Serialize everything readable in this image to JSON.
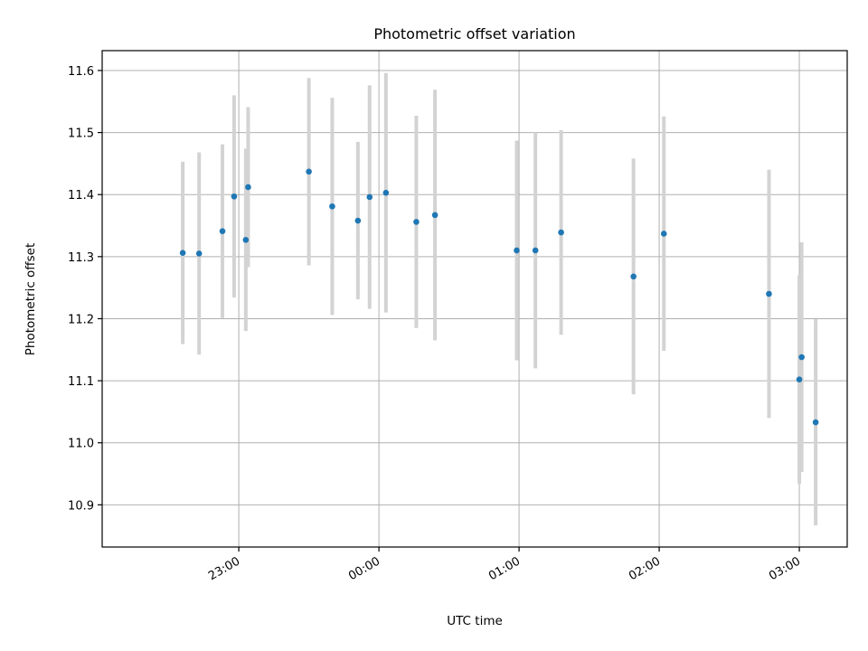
{
  "chart_data": {
    "type": "scatter",
    "title": "Photometric offset variation",
    "xlabel": "UTC time",
    "ylabel": "Photometric offset",
    "x_ticks": [
      "23:00",
      "00:00",
      "01:00",
      "02:00",
      "03:00"
    ],
    "x_tick_minutes": [
      1380,
      1440,
      1500,
      1560,
      1620
    ],
    "x_range_minutes": [
      1321.5,
      1640.5
    ],
    "ylim": [
      10.832,
      11.632
    ],
    "y_ticks": [
      10.9,
      11.0,
      11.1,
      11.2,
      11.3,
      11.4,
      11.5,
      11.6
    ],
    "grid": true,
    "point_color": "#1f77b4",
    "errorbar_color": "#d3d3d3",
    "points": [
      {
        "time": "22:36",
        "y": 11.306,
        "err": 0.147
      },
      {
        "time": "22:43",
        "y": 11.305,
        "err": 0.163
      },
      {
        "time": "22:53",
        "y": 11.341,
        "err": 0.14
      },
      {
        "time": "23:03",
        "y": 11.327,
        "err": 0.147
      },
      {
        "time": "22:58",
        "y": 11.397,
        "err": 0.163
      },
      {
        "time": "23:04",
        "y": 11.412,
        "err": 0.129
      },
      {
        "time": "23:30",
        "y": 11.437,
        "err": 0.151
      },
      {
        "time": "23:40",
        "y": 11.381,
        "err": 0.175
      },
      {
        "time": "23:51",
        "y": 11.358,
        "err": 0.127
      },
      {
        "time": "23:56",
        "y": 11.396,
        "err": 0.18
      },
      {
        "time": "00:03",
        "y": 11.403,
        "err": 0.193
      },
      {
        "time": "00:16",
        "y": 11.356,
        "err": 0.171
      },
      {
        "time": "00:24",
        "y": 11.367,
        "err": 0.202
      },
      {
        "time": "00:59",
        "y": 11.31,
        "err": 0.177
      },
      {
        "time": "01:07",
        "y": 11.31,
        "err": 0.19
      },
      {
        "time": "01:18",
        "y": 11.339,
        "err": 0.165
      },
      {
        "time": "01:49",
        "y": 11.268,
        "err": 0.19
      },
      {
        "time": "02:02",
        "y": 11.337,
        "err": 0.189
      },
      {
        "time": "02:47",
        "y": 11.24,
        "err": 0.2
      },
      {
        "time": "03:00",
        "y": 11.102,
        "err": 0.168
      },
      {
        "time": "03:01",
        "y": 11.138,
        "err": 0.185
      },
      {
        "time": "03:07",
        "y": 11.033,
        "err": 0.166
      }
    ]
  }
}
